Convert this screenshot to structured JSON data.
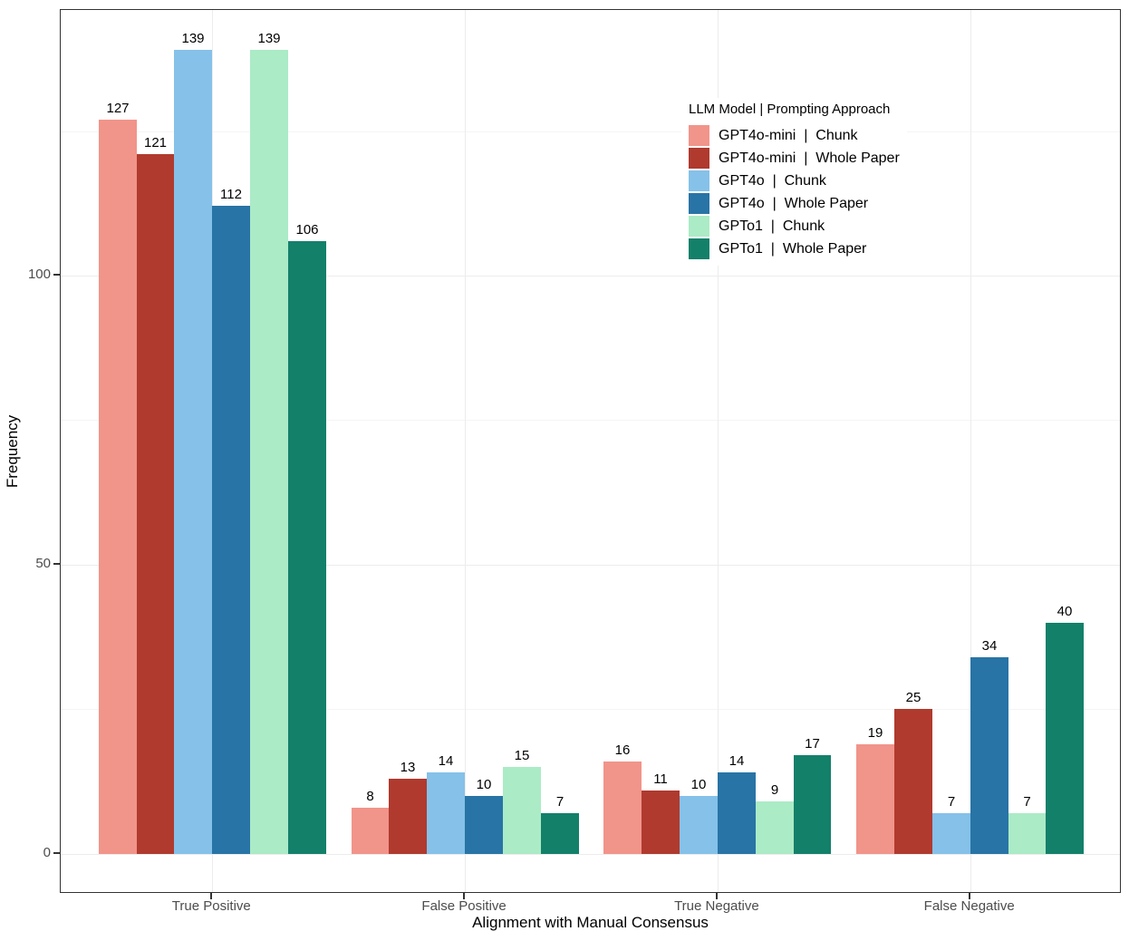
{
  "chart_data": {
    "type": "bar",
    "title": "",
    "xlabel": "Alignment with Manual Consensus",
    "ylabel": "Frequency",
    "categories": [
      "True Positive",
      "False Positive",
      "True Negative",
      "False Negative"
    ],
    "series": [
      {
        "name": "GPT4o-mini  |  Chunk",
        "color": "#F1948A",
        "values": [
          127,
          8,
          16,
          19
        ]
      },
      {
        "name": "GPT4o-mini  |  Whole Paper",
        "color": "#B03A2E",
        "values": [
          121,
          13,
          11,
          25
        ]
      },
      {
        "name": "GPT4o  |  Chunk",
        "color": "#85C1E9",
        "values": [
          139,
          14,
          10,
          7
        ]
      },
      {
        "name": "GPT4o  |  Whole Paper",
        "color": "#2874A6",
        "values": [
          112,
          10,
          14,
          34
        ]
      },
      {
        "name": "GPTo1  |  Chunk",
        "color": "#ABEBC6",
        "values": [
          139,
          15,
          9,
          7
        ]
      },
      {
        "name": "GPTo1  |  Whole Paper",
        "color": "#13806A",
        "values": [
          106,
          7,
          17,
          40
        ]
      }
    ],
    "legend_title": "LLM Model | Prompting Approach",
    "legend_position": "inside-top-right",
    "y_ticks": [
      0,
      50,
      100
    ],
    "y_minor_ticks": [
      25,
      75,
      125
    ],
    "ylim": [
      -6.95,
      145.95
    ],
    "grid": "major+minor",
    "bar_value_labels": true,
    "colors": {
      "panel_border": "#333333",
      "grid_major": "#ECECEC",
      "grid_minor": "#F5F5F5",
      "axis_text": "#4D4D4D",
      "label_text": "#000000"
    }
  }
}
